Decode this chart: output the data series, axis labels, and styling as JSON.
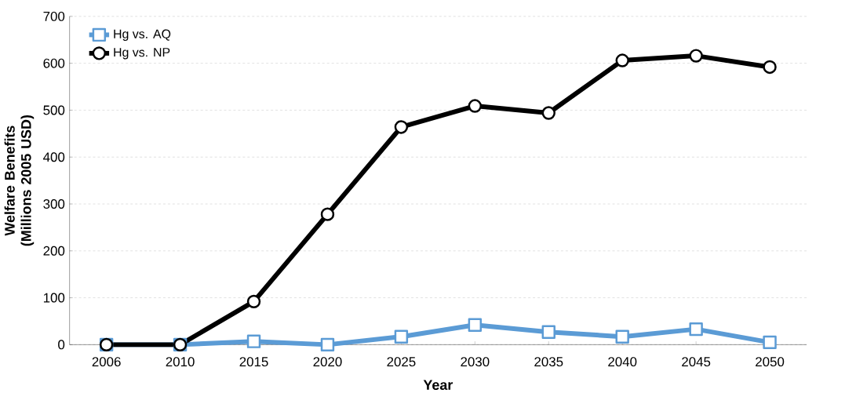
{
  "chart_data": {
    "type": "line",
    "xlabel": "Year",
    "ylabel": "Welfare Benefits (Millions 2005 USD)",
    "categories": [
      "2006",
      "2010",
      "2015",
      "2020",
      "2025",
      "2030",
      "2035",
      "2040",
      "2045",
      "2050"
    ],
    "series": [
      {
        "name": "Hg vs. AQ",
        "color": "#5b9bd5",
        "marker": "square",
        "values": [
          0,
          0,
          7,
          0,
          17,
          42,
          27,
          17,
          33,
          5
        ]
      },
      {
        "name": "Hg vs. NP",
        "color": "#000000",
        "marker": "circle",
        "values": [
          0,
          0,
          92,
          278,
          464,
          509,
          494,
          606,
          616,
          592
        ]
      }
    ],
    "ylim": [
      0,
      700
    ],
    "yticks": [
      0,
      100,
      200,
      300,
      400,
      500,
      600,
      700
    ],
    "grid": "y",
    "legend": "top left",
    "line_style": "solid"
  }
}
